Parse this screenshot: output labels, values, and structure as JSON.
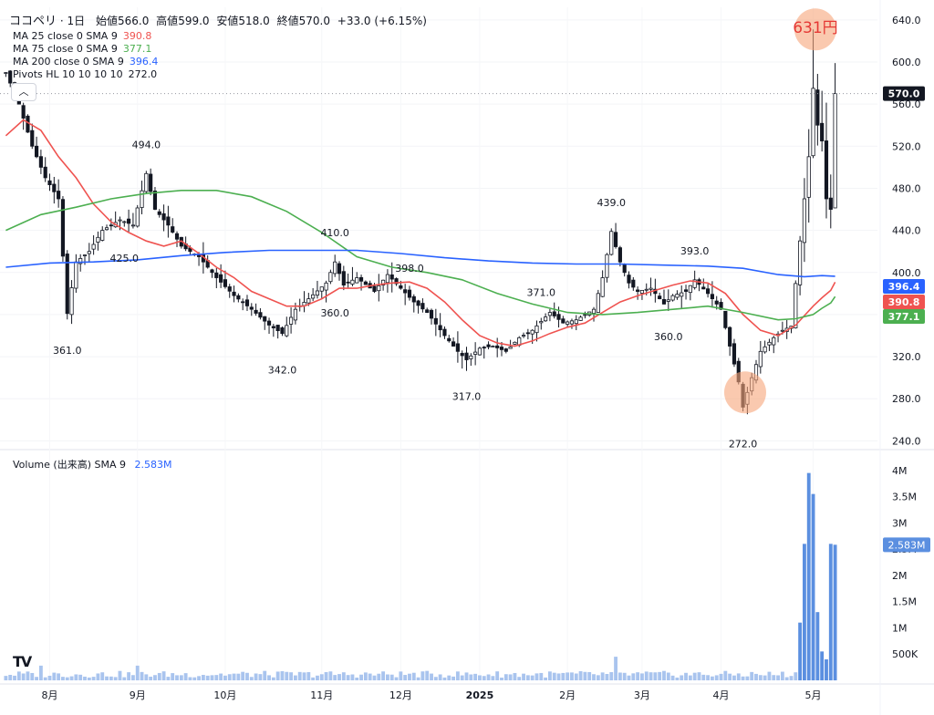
{
  "header": {
    "symbol": "ココペリ",
    "interval": "1日",
    "open_label": "始値",
    "open": "566.0",
    "high_label": "高値",
    "high": "599.0",
    "low_label": "安値",
    "low": "518.0",
    "close_label": "終値",
    "close": "570.0",
    "change": "+33.0 (+6.15%)"
  },
  "legend": [
    {
      "label": "MA 25 close 0 SMA 9",
      "value": "390.8",
      "color": "#ef5350"
    },
    {
      "label": "MA 75 close 0 SMA 9",
      "value": "377.1",
      "color": "#4caf50"
    },
    {
      "label": "MA 200 close 0 SMA 9",
      "value": "396.4",
      "color": "#2962ff"
    },
    {
      "label": "Pivots HL 10 10 10 10",
      "value": "272.0",
      "color": "#131722"
    }
  ],
  "volume_legend": {
    "label": "Volume (出来高)  SMA 9",
    "value": "2.583M"
  },
  "collapse_icon": "chevron-up-icon",
  "logo": "TV",
  "chart_data": {
    "type": "candlestick",
    "price_axis": {
      "ticks": [
        240,
        280,
        320,
        360,
        400,
        440,
        480,
        520,
        560,
        600,
        640
      ],
      "tick_labels": [
        "240.0",
        "280.0",
        "320.0",
        "360.0",
        "400.0",
        "440.0",
        "480.0",
        "520.0",
        "560.0",
        "600.0",
        "640.0"
      ],
      "range": [
        236,
        652
      ]
    },
    "volume_axis": {
      "ticks": [
        0.5,
        1,
        1.5,
        2,
        2.5,
        3,
        3.5,
        4
      ],
      "tick_labels": [
        "500K",
        "1M",
        "1.5M",
        "2M",
        "2.5M",
        "3M",
        "3.5M",
        "4M"
      ],
      "range": [
        0,
        4.1
      ],
      "unit": "M"
    },
    "time_axis": {
      "labels": [
        "8月",
        "9月",
        "10月",
        "11月",
        "12月",
        "2025",
        "2月",
        "3月",
        "4月",
        "5月"
      ],
      "bar_index": [
        10,
        30,
        50,
        72,
        90,
        108,
        128,
        145,
        163,
        184
      ]
    },
    "bars_count": 190,
    "anchors": [
      [
        0,
        590
      ],
      [
        3,
        560
      ],
      [
        6,
        520
      ],
      [
        9,
        490
      ],
      [
        12,
        470
      ],
      [
        14,
        361
      ],
      [
        16,
        410
      ],
      [
        19,
        420
      ],
      [
        22,
        440
      ],
      [
        26,
        450
      ],
      [
        29,
        445
      ],
      [
        32,
        494
      ],
      [
        34,
        460
      ],
      [
        37,
        445
      ],
      [
        40,
        425
      ],
      [
        44,
        415
      ],
      [
        48,
        395
      ],
      [
        52,
        378
      ],
      [
        56,
        365
      ],
      [
        60,
        350
      ],
      [
        63,
        342
      ],
      [
        66,
        365
      ],
      [
        69,
        375
      ],
      [
        73,
        390
      ],
      [
        75,
        410
      ],
      [
        77,
        388
      ],
      [
        80,
        395
      ],
      [
        84,
        382
      ],
      [
        87,
        398
      ],
      [
        90,
        385
      ],
      [
        93,
        372
      ],
      [
        96,
        362
      ],
      [
        100,
        340
      ],
      [
        103,
        325
      ],
      [
        105,
        317
      ],
      [
        108,
        328
      ],
      [
        111,
        330
      ],
      [
        114,
        325
      ],
      [
        117,
        338
      ],
      [
        120,
        345
      ],
      [
        124,
        362
      ],
      [
        127,
        352
      ],
      [
        130,
        355
      ],
      [
        134,
        365
      ],
      [
        136,
        395
      ],
      [
        138,
        439
      ],
      [
        140,
        410
      ],
      [
        142,
        390
      ],
      [
        144,
        382
      ],
      [
        147,
        385
      ],
      [
        150,
        370
      ],
      [
        152,
        378
      ],
      [
        155,
        382
      ],
      [
        157,
        393
      ],
      [
        160,
        380
      ],
      [
        163,
        365
      ],
      [
        165,
        330
      ],
      [
        167,
        296
      ],
      [
        168,
        272
      ],
      [
        170,
        300
      ],
      [
        172,
        325
      ],
      [
        175,
        338
      ],
      [
        177,
        345
      ],
      [
        179,
        349
      ],
      [
        181,
        430
      ],
      [
        183,
        510
      ],
      [
        184,
        575
      ],
      [
        185,
        540
      ],
      [
        186,
        525
      ],
      [
        187,
        470
      ],
      [
        188,
        460
      ],
      [
        189,
        570
      ]
    ],
    "current_price": 570.0,
    "price_labels": [
      {
        "value": "570.0",
        "bg": "#131722"
      },
      {
        "value": "396.4",
        "bg": "#2962ff"
      },
      {
        "value": "390.8",
        "bg": "#ef5350"
      },
      {
        "value": "377.1",
        "bg": "#4caf50"
      }
    ],
    "volume_current": "2.583M",
    "pivots": [
      {
        "bar": 14,
        "text": "361.0",
        "pos": "low"
      },
      {
        "bar": 32,
        "text": "494.0",
        "pos": "high"
      },
      {
        "bar": 27,
        "text": "425.0",
        "pos": "low"
      },
      {
        "bar": 75,
        "text": "410.0",
        "pos": "high"
      },
      {
        "bar": 63,
        "text": "342.0",
        "pos": "low"
      },
      {
        "bar": 75,
        "text": "360.0",
        "pos": "low2"
      },
      {
        "bar": 92,
        "text": "398.0",
        "pos": "high"
      },
      {
        "bar": 122,
        "text": "371.0",
        "pos": "high"
      },
      {
        "bar": 105,
        "text": "317.0",
        "pos": "low"
      },
      {
        "bar": 138,
        "text": "439.0",
        "pos": "high"
      },
      {
        "bar": 157,
        "text": "393.0",
        "pos": "high"
      },
      {
        "bar": 151,
        "text": "360.0",
        "pos": "low"
      },
      {
        "bar": 168,
        "text": "272.0",
        "pos": "low"
      }
    ],
    "annotation": {
      "text": "631円",
      "color": "#e53935"
    },
    "highlight_circles": [
      {
        "bar": 184.5,
        "price": 631
      },
      {
        "bar": 168.5,
        "price": 286
      }
    ],
    "series": [
      {
        "name": "MA 25 close 0 SMA 9",
        "color": "#ef5350",
        "points": [
          [
            0,
            530
          ],
          [
            4,
            545
          ],
          [
            8,
            535
          ],
          [
            12,
            510
          ],
          [
            16,
            490
          ],
          [
            20,
            465
          ],
          [
            24,
            448
          ],
          [
            28,
            438
          ],
          [
            32,
            430
          ],
          [
            36,
            425
          ],
          [
            40,
            430
          ],
          [
            44,
            418
          ],
          [
            48,
            405
          ],
          [
            52,
            395
          ],
          [
            56,
            382
          ],
          [
            60,
            375
          ],
          [
            64,
            368
          ],
          [
            68,
            368
          ],
          [
            72,
            375
          ],
          [
            76,
            385
          ],
          [
            80,
            385
          ],
          [
            84,
            388
          ],
          [
            88,
            390
          ],
          [
            92,
            391
          ],
          [
            96,
            385
          ],
          [
            100,
            372
          ],
          [
            104,
            355
          ],
          [
            108,
            340
          ],
          [
            112,
            333
          ],
          [
            116,
            330
          ],
          [
            120,
            335
          ],
          [
            124,
            342
          ],
          [
            128,
            348
          ],
          [
            132,
            352
          ],
          [
            136,
            362
          ],
          [
            140,
            372
          ],
          [
            144,
            378
          ],
          [
            148,
            383
          ],
          [
            152,
            388
          ],
          [
            156,
            392
          ],
          [
            160,
            390
          ],
          [
            164,
            380
          ],
          [
            168,
            360
          ],
          [
            172,
            345
          ],
          [
            176,
            340
          ],
          [
            180,
            350
          ],
          [
            184,
            368
          ],
          [
            186,
            376
          ],
          [
            188,
            383
          ],
          [
            190,
            390.8
          ]
        ]
      },
      {
        "name": "MA 75 close 0 SMA 9",
        "color": "#4caf50",
        "points": [
          [
            0,
            440
          ],
          [
            8,
            455
          ],
          [
            16,
            462
          ],
          [
            24,
            470
          ],
          [
            32,
            475
          ],
          [
            40,
            478
          ],
          [
            48,
            478
          ],
          [
            56,
            472
          ],
          [
            64,
            458
          ],
          [
            72,
            438
          ],
          [
            80,
            415
          ],
          [
            88,
            405
          ],
          [
            96,
            400
          ],
          [
            104,
            393
          ],
          [
            112,
            380
          ],
          [
            120,
            370
          ],
          [
            128,
            362
          ],
          [
            136,
            360
          ],
          [
            144,
            362
          ],
          [
            152,
            365
          ],
          [
            160,
            368
          ],
          [
            168,
            362
          ],
          [
            176,
            355
          ],
          [
            180,
            356
          ],
          [
            184,
            360
          ],
          [
            186,
            366
          ],
          [
            188,
            371
          ],
          [
            190,
            377.1
          ]
        ]
      },
      {
        "name": "MA 200 close 0 SMA 9",
        "color": "#2962ff",
        "points": [
          [
            0,
            405
          ],
          [
            10,
            409
          ],
          [
            20,
            410
          ],
          [
            30,
            412
          ],
          [
            40,
            416
          ],
          [
            50,
            419
          ],
          [
            60,
            421
          ],
          [
            72,
            421
          ],
          [
            80,
            421
          ],
          [
            90,
            418
          ],
          [
            100,
            414
          ],
          [
            110,
            411
          ],
          [
            120,
            409
          ],
          [
            130,
            408
          ],
          [
            140,
            408
          ],
          [
            150,
            407
          ],
          [
            160,
            406
          ],
          [
            168,
            404
          ],
          [
            176,
            398
          ],
          [
            182,
            396
          ],
          [
            186,
            397
          ],
          [
            190,
            396.4
          ]
        ]
      }
    ]
  }
}
